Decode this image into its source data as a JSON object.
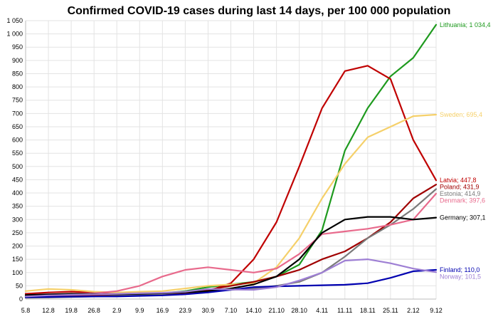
{
  "chart_data": {
    "type": "line",
    "title": "Confirmed COVID-19 cases during last 14 days, per 100 000 population",
    "xlabel": "",
    "ylabel": "",
    "ylim": [
      0,
      1050
    ],
    "yticks": [
      0,
      50,
      100,
      150,
      200,
      250,
      300,
      350,
      400,
      450,
      500,
      550,
      600,
      650,
      700,
      750,
      800,
      850,
      900,
      950,
      1000,
      1050
    ],
    "ytick_labels": [
      "0",
      "50",
      "100",
      "150",
      "200",
      "250",
      "300",
      "350",
      "400",
      "450",
      "500",
      "550",
      "600",
      "650",
      "700",
      "750",
      "800",
      "850",
      "900",
      "950",
      "1 000",
      "1 050"
    ],
    "x": [
      "5.8",
      "12.8",
      "19.8",
      "26.8",
      "2.9",
      "9.9",
      "16.9",
      "23.9",
      "30.9",
      "7.10",
      "14.10",
      "21.10",
      "28.10",
      "4.11",
      "11.11",
      "18.11",
      "25.11",
      "2.12",
      "9.12"
    ],
    "grid": true,
    "series": [
      {
        "name": "Lithuania; 1 034,4",
        "color": "#1e9a1e",
        "values": [
          12,
          14,
          15,
          13,
          14,
          18,
          22,
          30,
          45,
          55,
          65,
          85,
          130,
          260,
          560,
          720,
          840,
          910,
          1034.4
        ]
      },
      {
        "name": "Latvia; 447,8",
        "color": "#c00000",
        "values": [
          20,
          25,
          28,
          25,
          20,
          22,
          20,
          22,
          30,
          60,
          150,
          290,
          500,
          720,
          860,
          880,
          830,
          600,
          447.8
        ]
      },
      {
        "name": "Sweden; 695,4",
        "color": "#f5d06a",
        "values": [
          30,
          38,
          35,
          28,
          25,
          28,
          30,
          40,
          50,
          55,
          60,
          120,
          230,
          380,
          510,
          610,
          650,
          690,
          695.4
        ]
      },
      {
        "name": "Poland; 431,9",
        "color": "#a00000",
        "values": [
          10,
          12,
          13,
          14,
          15,
          18,
          22,
          26,
          35,
          50,
          65,
          85,
          110,
          150,
          180,
          230,
          290,
          380,
          431.9
        ]
      },
      {
        "name": "Estonia; 414,9",
        "color": "#7a7a7a",
        "values": [
          5,
          6,
          8,
          10,
          12,
          15,
          20,
          25,
          30,
          35,
          40,
          50,
          65,
          100,
          160,
          230,
          280,
          340,
          414.9
        ]
      },
      {
        "name": "Denmark; 397,6",
        "color": "#e86a8c",
        "values": [
          10,
          15,
          20,
          22,
          30,
          50,
          85,
          110,
          120,
          110,
          100,
          115,
          170,
          245,
          255,
          265,
          280,
          300,
          397.6
        ]
      },
      {
        "name": "Germany; 307,1",
        "color": "#000000",
        "values": [
          15,
          18,
          20,
          19,
          18,
          20,
          22,
          25,
          30,
          40,
          55,
          85,
          150,
          250,
          300,
          310,
          310,
          300,
          307.1
        ]
      },
      {
        "name": "Finland; 110,0",
        "color": "#0000b0",
        "values": [
          7,
          8,
          9,
          10,
          10,
          12,
          14,
          18,
          25,
          35,
          45,
          48,
          50,
          52,
          54,
          60,
          80,
          105,
          110.0
        ]
      },
      {
        "name": "Norway; 101,5",
        "color": "#9e7fd4",
        "values": [
          10,
          14,
          16,
          18,
          20,
          22,
          24,
          28,
          38,
          36,
          35,
          45,
          70,
          100,
          145,
          150,
          135,
          115,
          101.5
        ]
      }
    ]
  }
}
